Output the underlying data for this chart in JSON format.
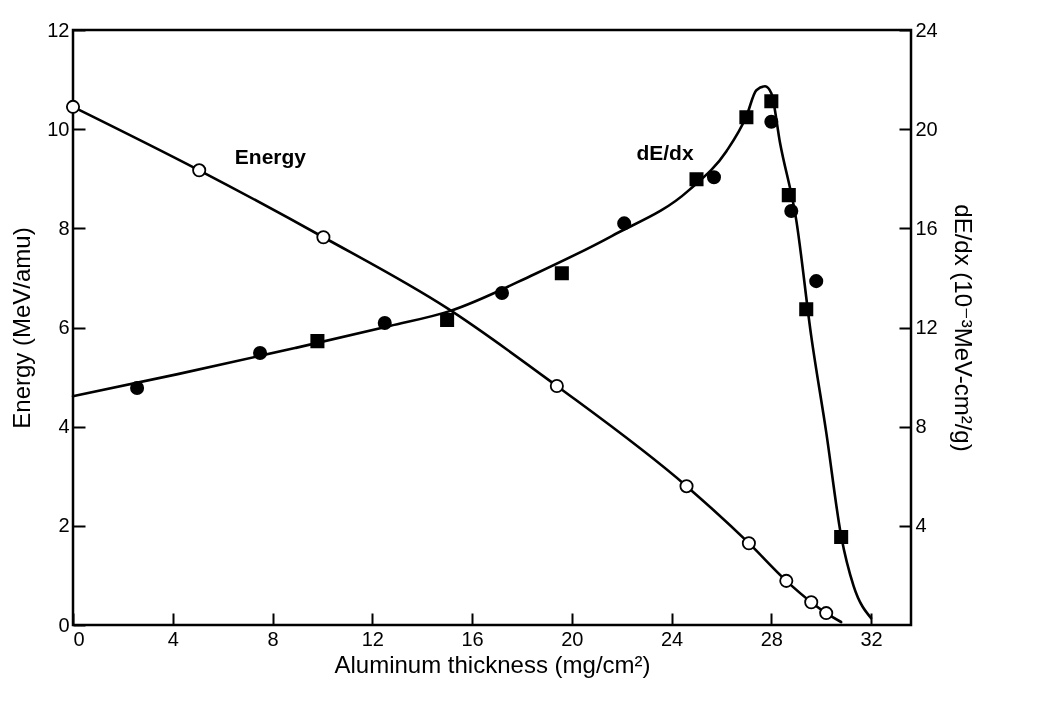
{
  "chart_data": {
    "type": "line",
    "xlabel": "Aluminum thickness (mg/cm²)",
    "ylabel": "Energy (MeV/amu)",
    "y2label": "dE/dx (10⁻³MeV-cm²/g)",
    "xlim": [
      0,
      33.6
    ],
    "xticks": [
      0,
      4,
      8,
      12,
      16,
      20,
      24,
      28,
      32
    ],
    "ylim": [
      0,
      12
    ],
    "yticks": [
      0,
      2,
      4,
      6,
      8,
      10,
      12
    ],
    "y2lim": [
      0,
      24
    ],
    "y2ticks": [
      4,
      8,
      12,
      16,
      20,
      24
    ],
    "grid": false,
    "line_style": "solid",
    "series": [
      {
        "name": "Energy",
        "marker": "none",
        "color": "#000000",
        "x": [
          0,
          5.06,
          10.04,
          15,
          19.4,
          24.6,
          27.1,
          28.6,
          29.6,
          30.2,
          30.8
        ],
        "values": [
          10.45,
          9.17,
          7.82,
          6.39,
          4.82,
          2.8,
          1.65,
          0.89,
          0.46,
          0.24,
          0.06
        ]
      },
      {
        "type": "scatter",
        "marker": "circle",
        "color": "#ffffff",
        "x": [
          0,
          5.06,
          10.04,
          19.4,
          24.6,
          27.1,
          28.6,
          29.6,
          30.2
        ],
        "values": [
          10.45,
          9.17,
          7.82,
          4.82,
          2.8,
          1.65,
          0.89,
          0.46,
          0.24
        ]
      },
      {
        "name": "dE/dx",
        "marker": "none",
        "axis": "y2",
        "color": "#000000",
        "x": [
          0,
          4.2,
          8.9,
          12.7,
          15.1,
          18.5,
          21.6,
          24.7,
          26.2,
          27.0,
          27.4,
          27.75,
          28.0,
          28.35,
          29.0,
          29.6,
          30.2,
          30.8,
          31.3,
          32.0
        ],
        "values": [
          9.23,
          10.12,
          11.17,
          12.06,
          12.66,
          14.15,
          15.69,
          17.54,
          19.11,
          20.52,
          21.57,
          21.73,
          21.45,
          19.44,
          16.33,
          11.65,
          7.78,
          3.59,
          1.57,
          0.28
        ]
      },
      {
        "type": "scatter",
        "marker": "circle",
        "axis": "y2",
        "color": "#000000",
        "x": [
          2.57,
          7.5,
          12.5,
          17.2,
          22.1,
          25.7,
          28.0,
          28.8,
          29.8
        ],
        "values": [
          9.56,
          10.97,
          12.18,
          13.39,
          16.2,
          18.06,
          20.3,
          16.7,
          13.87
        ]
      },
      {
        "type": "scatter",
        "marker": "square",
        "axis": "y2",
        "color": "#000000",
        "x": [
          9.8,
          15.0,
          19.6,
          25.0,
          27.0,
          28.0,
          28.7,
          29.4,
          30.8
        ],
        "values": [
          11.45,
          12.3,
          14.19,
          17.98,
          20.48,
          21.13,
          17.34,
          12.74,
          3.55
        ]
      }
    ]
  }
}
